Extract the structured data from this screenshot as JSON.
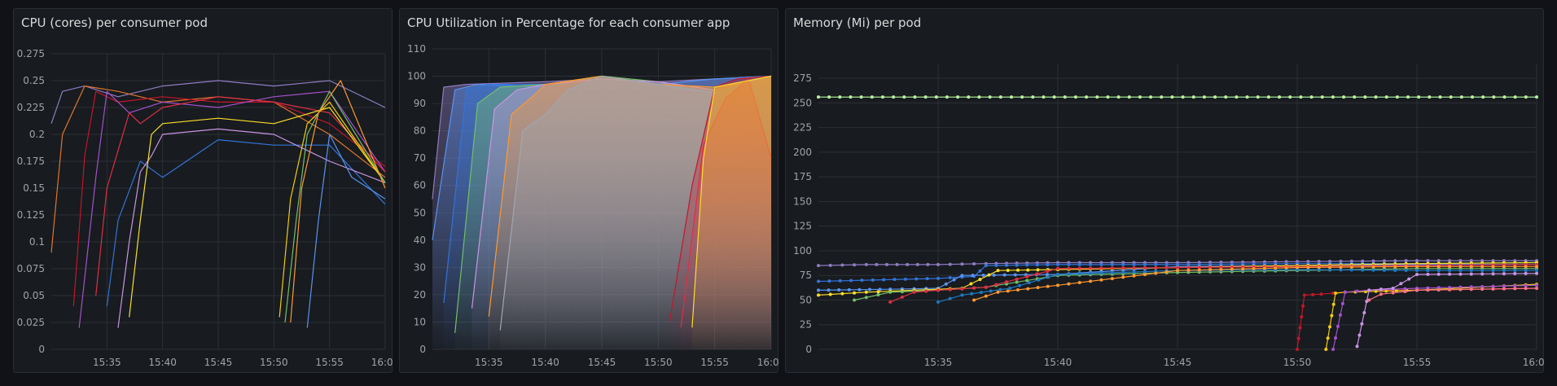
{
  "colors": {
    "background": "#111217",
    "panel": "#181b1f",
    "grid": "#2c2f35",
    "text": "#d8d9da",
    "tick": "#a0a3a8"
  },
  "chart_data": [
    {
      "type": "line",
      "title": "CPU (cores) per consumer pod",
      "xlabel": "",
      "ylabel": "",
      "ylim": [
        0,
        0.275
      ],
      "yticks": [
        "0",
        "0.025",
        "0.05",
        "0.075",
        "0.1",
        "0.125",
        "0.15",
        "0.175",
        "0.2",
        "0.225",
        "0.25",
        "0.275"
      ],
      "xlim": [
        "15:30",
        "16:00"
      ],
      "xticks": [
        "15:35",
        "15:40",
        "15:45",
        "15:50",
        "15:55",
        "16:00"
      ],
      "grid": true,
      "series": [
        {
          "color": "#8e7cc3",
          "x": [
            "15:30",
            "15:31",
            "15:33",
            "15:36",
            "15:40",
            "15:45",
            "15:50",
            "15:55",
            "16:00"
          ],
          "values": [
            0.21,
            0.24,
            0.245,
            0.235,
            0.245,
            0.25,
            0.245,
            0.25,
            0.225
          ]
        },
        {
          "color": "#e0752d",
          "x": [
            "15:30",
            "15:31",
            "15:33",
            "15:36",
            "15:40",
            "15:45",
            "15:50",
            "15:55",
            "16:00"
          ],
          "values": [
            0.09,
            0.2,
            0.245,
            0.24,
            0.23,
            0.235,
            0.23,
            0.2,
            0.16
          ]
        },
        {
          "color": "#c4162a",
          "x": [
            "15:32",
            "15:33",
            "15:34",
            "15:36",
            "15:40",
            "15:45",
            "15:50",
            "15:55",
            "16:00"
          ],
          "values": [
            0.04,
            0.18,
            0.24,
            0.23,
            0.235,
            0.23,
            0.23,
            0.21,
            0.17
          ]
        },
        {
          "color": "#a352cc",
          "x": [
            "15:32.5",
            "15:34",
            "15:35",
            "15:37",
            "15:40",
            "15:45",
            "15:50",
            "15:55",
            "16:00"
          ],
          "values": [
            0.02,
            0.16,
            0.24,
            0.22,
            0.23,
            0.225,
            0.235,
            0.24,
            0.165
          ]
        },
        {
          "color": "#e02f44",
          "x": [
            "15:34",
            "15:35",
            "15:37",
            "15:38",
            "15:40",
            "15:45",
            "15:50",
            "15:55",
            "16:00"
          ],
          "values": [
            0.05,
            0.15,
            0.22,
            0.21,
            0.225,
            0.235,
            0.23,
            0.22,
            0.165
          ]
        },
        {
          "color": "#3274d9",
          "x": [
            "15:35",
            "15:36",
            "15:38",
            "15:40",
            "15:45",
            "15:50",
            "15:55",
            "16:00"
          ],
          "values": [
            0.04,
            0.12,
            0.175,
            0.16,
            0.195,
            0.19,
            0.19,
            0.135
          ]
        },
        {
          "color": "#ca95e5",
          "x": [
            "15:36",
            "15:37",
            "15:38",
            "15:39",
            "15:40",
            "15:45",
            "15:50",
            "15:55",
            "16:00"
          ],
          "values": [
            0.02,
            0.1,
            0.165,
            0.18,
            0.2,
            0.205,
            0.2,
            0.175,
            0.155
          ]
        },
        {
          "color": "#fade2a",
          "x": [
            "15:37",
            "15:38",
            "15:39",
            "15:40",
            "15:45",
            "15:50",
            "15:55",
            "16:00"
          ],
          "values": [
            0.03,
            0.12,
            0.2,
            0.21,
            0.215,
            0.21,
            0.225,
            0.155
          ]
        },
        {
          "color": "#f2cc0c",
          "x": [
            "15:50.5",
            "15:51.5",
            "15:53",
            "15:55",
            "16:00"
          ],
          "values": [
            0.03,
            0.14,
            0.21,
            0.23,
            0.155
          ]
        },
        {
          "color": "#5794f2",
          "x": [
            "15:53",
            "15:54",
            "15:55",
            "15:57",
            "16:00"
          ],
          "values": [
            0.02,
            0.12,
            0.2,
            0.16,
            0.14
          ]
        },
        {
          "color": "#73bf69",
          "x": [
            "15:51",
            "15:52",
            "15:53",
            "15:55",
            "16:00"
          ],
          "values": [
            0.025,
            0.12,
            0.2,
            0.24,
            0.155
          ]
        },
        {
          "color": "#ff9830",
          "x": [
            "15:51.5",
            "15:52.5",
            "15:54",
            "15:56",
            "16:00"
          ],
          "values": [
            0.025,
            0.15,
            0.22,
            0.25,
            0.15
          ]
        }
      ]
    },
    {
      "type": "area",
      "title": "CPU Utilization in Percentage for each consumer app",
      "xlabel": "",
      "ylabel": "",
      "ylim": [
        0,
        110
      ],
      "yticks": [
        "0",
        "10",
        "20",
        "30",
        "40",
        "50",
        "60",
        "70",
        "80",
        "90",
        "100",
        "110"
      ],
      "xlim": [
        "15:30",
        "16:00"
      ],
      "xticks": [
        "15:35",
        "15:40",
        "15:45",
        "15:50",
        "15:55",
        "16:00"
      ],
      "grid": true,
      "series": [
        {
          "color": "#8e7cc3",
          "x": [
            "15:30",
            "15:31",
            "15:33",
            "15:40",
            "15:45",
            "15:50",
            "15:55",
            "16:00"
          ],
          "values": [
            55,
            96,
            97,
            98,
            99,
            98,
            99,
            100
          ]
        },
        {
          "color": "#5794f2",
          "x": [
            "15:30",
            "15:32",
            "15:34",
            "15:40",
            "15:45",
            "15:50",
            "15:55",
            "16:00"
          ],
          "values": [
            40,
            95,
            97,
            96,
            100,
            97,
            99,
            100
          ]
        },
        {
          "color": "#3274d9",
          "x": [
            "15:31",
            "15:33",
            "15:35",
            "15:40",
            "15:45",
            "15:50",
            "15:55",
            "16:00"
          ],
          "values": [
            17,
            95,
            97,
            97,
            99,
            97,
            96,
            99
          ]
        },
        {
          "color": "#73bf69",
          "x": [
            "15:32",
            "15:34",
            "15:36",
            "15:40",
            "15:45",
            "15:50",
            "15:55",
            "16:00"
          ],
          "values": [
            6,
            90,
            96,
            97,
            100,
            98,
            95,
            100
          ]
        },
        {
          "color": "#ca95e5",
          "x": [
            "15:33.5",
            "15:35.5",
            "15:37.5",
            "15:40",
            "15:45",
            "15:50",
            "15:55",
            "16:00"
          ],
          "values": [
            15,
            88,
            95,
            97,
            99,
            98,
            95,
            100
          ]
        },
        {
          "color": "#ff9830",
          "x": [
            "15:35",
            "15:37",
            "15:39",
            "15:40",
            "15:45",
            "15:50",
            "15:55",
            "16:00"
          ],
          "values": [
            12,
            86,
            93,
            97,
            100,
            97,
            96,
            99
          ]
        },
        {
          "color": "#9fa7b3",
          "x": [
            "15:36",
            "15:38",
            "15:40",
            "15:42",
            "15:45",
            "15:50",
            "15:55",
            "16:00"
          ],
          "values": [
            7,
            80,
            86,
            95,
            100,
            97,
            94,
            100
          ]
        },
        {
          "color": "#c4162a",
          "x": [
            "15:51",
            "15:53",
            "15:55",
            "15:57",
            "16:00"
          ],
          "values": [
            10,
            60,
            96,
            99,
            100
          ]
        },
        {
          "color": "#e02f44",
          "x": [
            "15:52",
            "15:54",
            "15:56",
            "15:58",
            "16:00"
          ],
          "values": [
            8,
            75,
            92,
            99,
            70
          ]
        },
        {
          "color": "#fade2a",
          "x": [
            "15:53",
            "15:54",
            "15:55",
            "16:00"
          ],
          "values": [
            8,
            70,
            96,
            100
          ]
        }
      ]
    },
    {
      "type": "line",
      "title": "Memory (Mi) per pod",
      "xlabel": "",
      "ylabel": "",
      "ylim": [
        0,
        290
      ],
      "yticks": [
        "0",
        "25",
        "50",
        "75",
        "100",
        "125",
        "150",
        "175",
        "200",
        "225",
        "250",
        "275"
      ],
      "xlim": [
        "15:30",
        "16:00"
      ],
      "xticks": [
        "15:35",
        "15:40",
        "15:45",
        "15:50",
        "15:55",
        "16:00"
      ],
      "grid": true,
      "series": [
        {
          "color": "#b6f5a0",
          "x": [
            "15:30",
            "16:00"
          ],
          "values": [
            256,
            256
          ]
        },
        {
          "color": "#8e7cc3",
          "x": [
            "15:30",
            "15:32",
            "15:35",
            "15:37",
            "15:40",
            "15:45",
            "15:50",
            "15:55",
            "16:00"
          ],
          "values": [
            85,
            86,
            86,
            87,
            88,
            88,
            89,
            90,
            90
          ]
        },
        {
          "color": "#3274d9",
          "x": [
            "15:30",
            "15:35",
            "15:36.5",
            "15:37",
            "15:40",
            "15:45",
            "15:50",
            "15:55",
            "16:00"
          ],
          "values": [
            69,
            72,
            74,
            85,
            86,
            86,
            87,
            87,
            88
          ]
        },
        {
          "color": "#5794f2",
          "x": [
            "15:30",
            "15:33",
            "15:35",
            "15:36",
            "15:40",
            "15:45",
            "15:50",
            "15:55",
            "16:00"
          ],
          "values": [
            60,
            61,
            62,
            75,
            76,
            84,
            85,
            86,
            86
          ]
        },
        {
          "color": "#fade2a",
          "x": [
            "15:30",
            "15:32",
            "15:34",
            "15:36",
            "15:37.5",
            "15:40",
            "15:45",
            "15:50",
            "15:55",
            "16:00"
          ],
          "values": [
            55,
            58,
            60,
            62,
            80,
            81,
            83,
            85,
            87,
            88
          ]
        },
        {
          "color": "#73bf69",
          "x": [
            "15:31.5",
            "15:33",
            "15:35",
            "15:37",
            "15:40",
            "15:45",
            "15:50",
            "15:55",
            "16:00"
          ],
          "values": [
            50,
            58,
            60,
            63,
            75,
            78,
            80,
            82,
            82
          ]
        },
        {
          "color": "#e02f44",
          "x": [
            "15:33",
            "15:34",
            "15:35",
            "15:37",
            "15:40",
            "15:45",
            "15:50",
            "15:55",
            "16:00"
          ],
          "values": [
            48,
            58,
            60,
            63,
            82,
            83,
            84,
            85,
            86
          ]
        },
        {
          "color": "#1f78c1",
          "x": [
            "15:35",
            "15:36",
            "15:38",
            "15:40",
            "15:45",
            "15:50",
            "15:55",
            "16:00"
          ],
          "values": [
            48,
            55,
            62,
            76,
            80,
            81,
            80,
            80
          ]
        },
        {
          "color": "#ff9830",
          "x": [
            "15:36.5",
            "15:37.5",
            "15:40",
            "15:45",
            "15:50",
            "15:55",
            "16:00"
          ],
          "values": [
            50,
            58,
            65,
            80,
            83,
            84,
            84
          ]
        },
        {
          "color": "#c4162a",
          "x": [
            "15:50",
            "15:50.3",
            "15:51",
            "15:53",
            "15:55",
            "16:00"
          ],
          "values": [
            0,
            55,
            56,
            60,
            60,
            62
          ]
        },
        {
          "color": "#f2cc0c",
          "x": [
            "15:51.2",
            "15:51.6",
            "15:52",
            "15:55",
            "16:00"
          ],
          "values": [
            0,
            57,
            58,
            60,
            66
          ]
        },
        {
          "color": "#a352cc",
          "x": [
            "15:51.5",
            "15:52",
            "15:53",
            "15:55",
            "16:00"
          ],
          "values": [
            0,
            58,
            60,
            62,
            65
          ]
        },
        {
          "color": "#ca95e5",
          "x": [
            "15:52.5",
            "15:53",
            "15:54",
            "15:55",
            "16:00"
          ],
          "values": [
            3,
            60,
            62,
            76,
            77
          ]
        },
        {
          "color": "#ff7383",
          "x": [
            "15:53",
            "15:53.5",
            "15:55",
            "16:00"
          ],
          "values": [
            50,
            56,
            60,
            62
          ]
        }
      ]
    }
  ]
}
